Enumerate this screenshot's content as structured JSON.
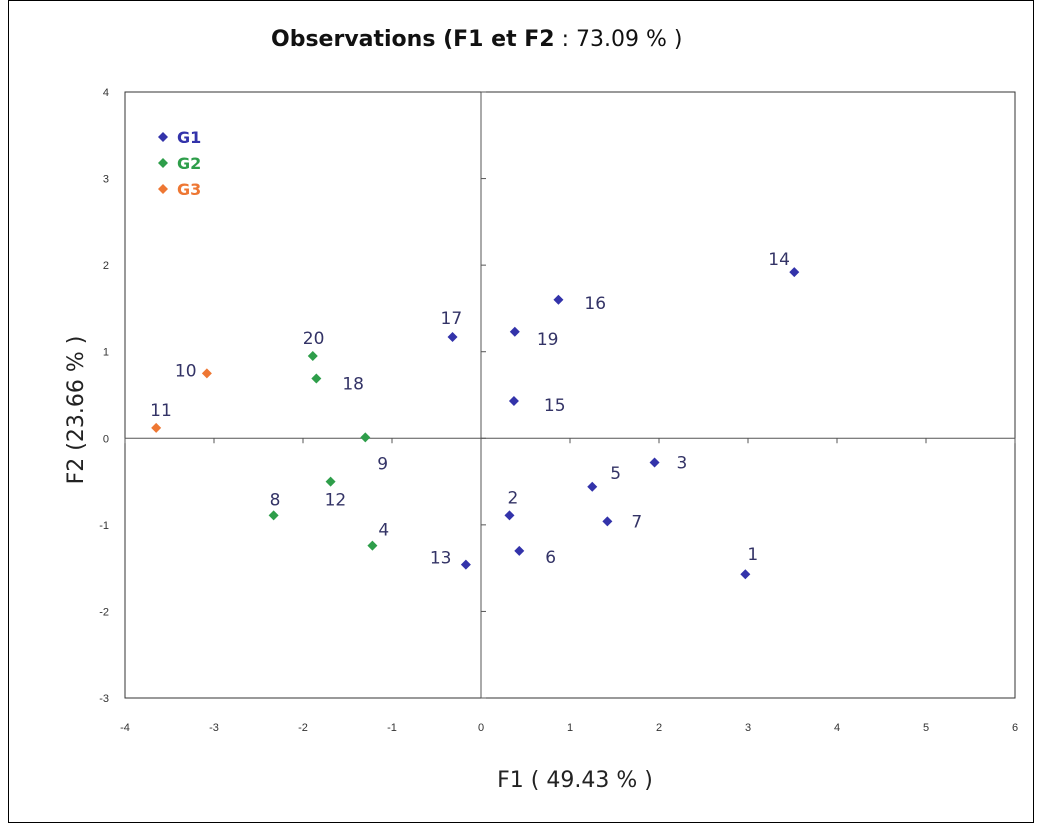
{
  "chart_data": {
    "type": "scatter",
    "title": "Observations ( F1 et F2 : 73.09 % )",
    "title_parts": [
      "Observations (",
      "F1 et F2",
      " : 73.09 % )"
    ],
    "xlabel": "F1 ( 49.43 % )",
    "ylabel": "F2 (23.66 % )",
    "xlim": [
      -4,
      6
    ],
    "ylim": [
      -3,
      4
    ],
    "xticks": [
      "-4",
      "-3",
      "-2",
      "-1",
      "0",
      "1",
      "2",
      "3",
      "4",
      "5",
      "6"
    ],
    "yticks": [
      "4",
      "3",
      "2",
      "1",
      "0",
      "-1",
      "-2",
      "-3"
    ],
    "grid": false,
    "legend_position": "top-left",
    "series": [
      {
        "name": "G1",
        "color": "#3333aa",
        "points": [
          {
            "label": "1",
            "x": 2.97,
            "y": -1.57
          },
          {
            "label": "2",
            "x": 0.32,
            "y": -0.89
          },
          {
            "label": "3",
            "x": 1.95,
            "y": -0.28
          },
          {
            "label": "5",
            "x": 1.25,
            "y": -0.56
          },
          {
            "label": "6",
            "x": 0.43,
            "y": -1.3
          },
          {
            "label": "7",
            "x": 1.42,
            "y": -0.96
          },
          {
            "label": "13",
            "x": -0.17,
            "y": -1.46
          },
          {
            "label": "14",
            "x": 3.52,
            "y": 1.92
          },
          {
            "label": "15",
            "x": 0.37,
            "y": 0.43
          },
          {
            "label": "16",
            "x": 0.87,
            "y": 1.6
          },
          {
            "label": "17",
            "x": -0.32,
            "y": 1.17
          },
          {
            "label": "19",
            "x": 0.38,
            "y": 1.23
          }
        ]
      },
      {
        "name": "G2",
        "color": "#2e9e4a",
        "points": [
          {
            "label": "4",
            "x": -1.22,
            "y": -1.24
          },
          {
            "label": "8",
            "x": -2.33,
            "y": -0.89
          },
          {
            "label": "9",
            "x": -1.3,
            "y": 0.01
          },
          {
            "label": "12",
            "x": -1.69,
            "y": -0.5
          },
          {
            "label": "18",
            "x": -1.85,
            "y": 0.69
          },
          {
            "label": "20",
            "x": -1.89,
            "y": 0.95
          }
        ]
      },
      {
        "name": "G3",
        "color": "#ee7733",
        "points": [
          {
            "label": "10",
            "x": -3.08,
            "y": 0.75
          },
          {
            "label": "11",
            "x": -3.65,
            "y": 0.12
          }
        ]
      }
    ]
  },
  "label_color": "#333366"
}
